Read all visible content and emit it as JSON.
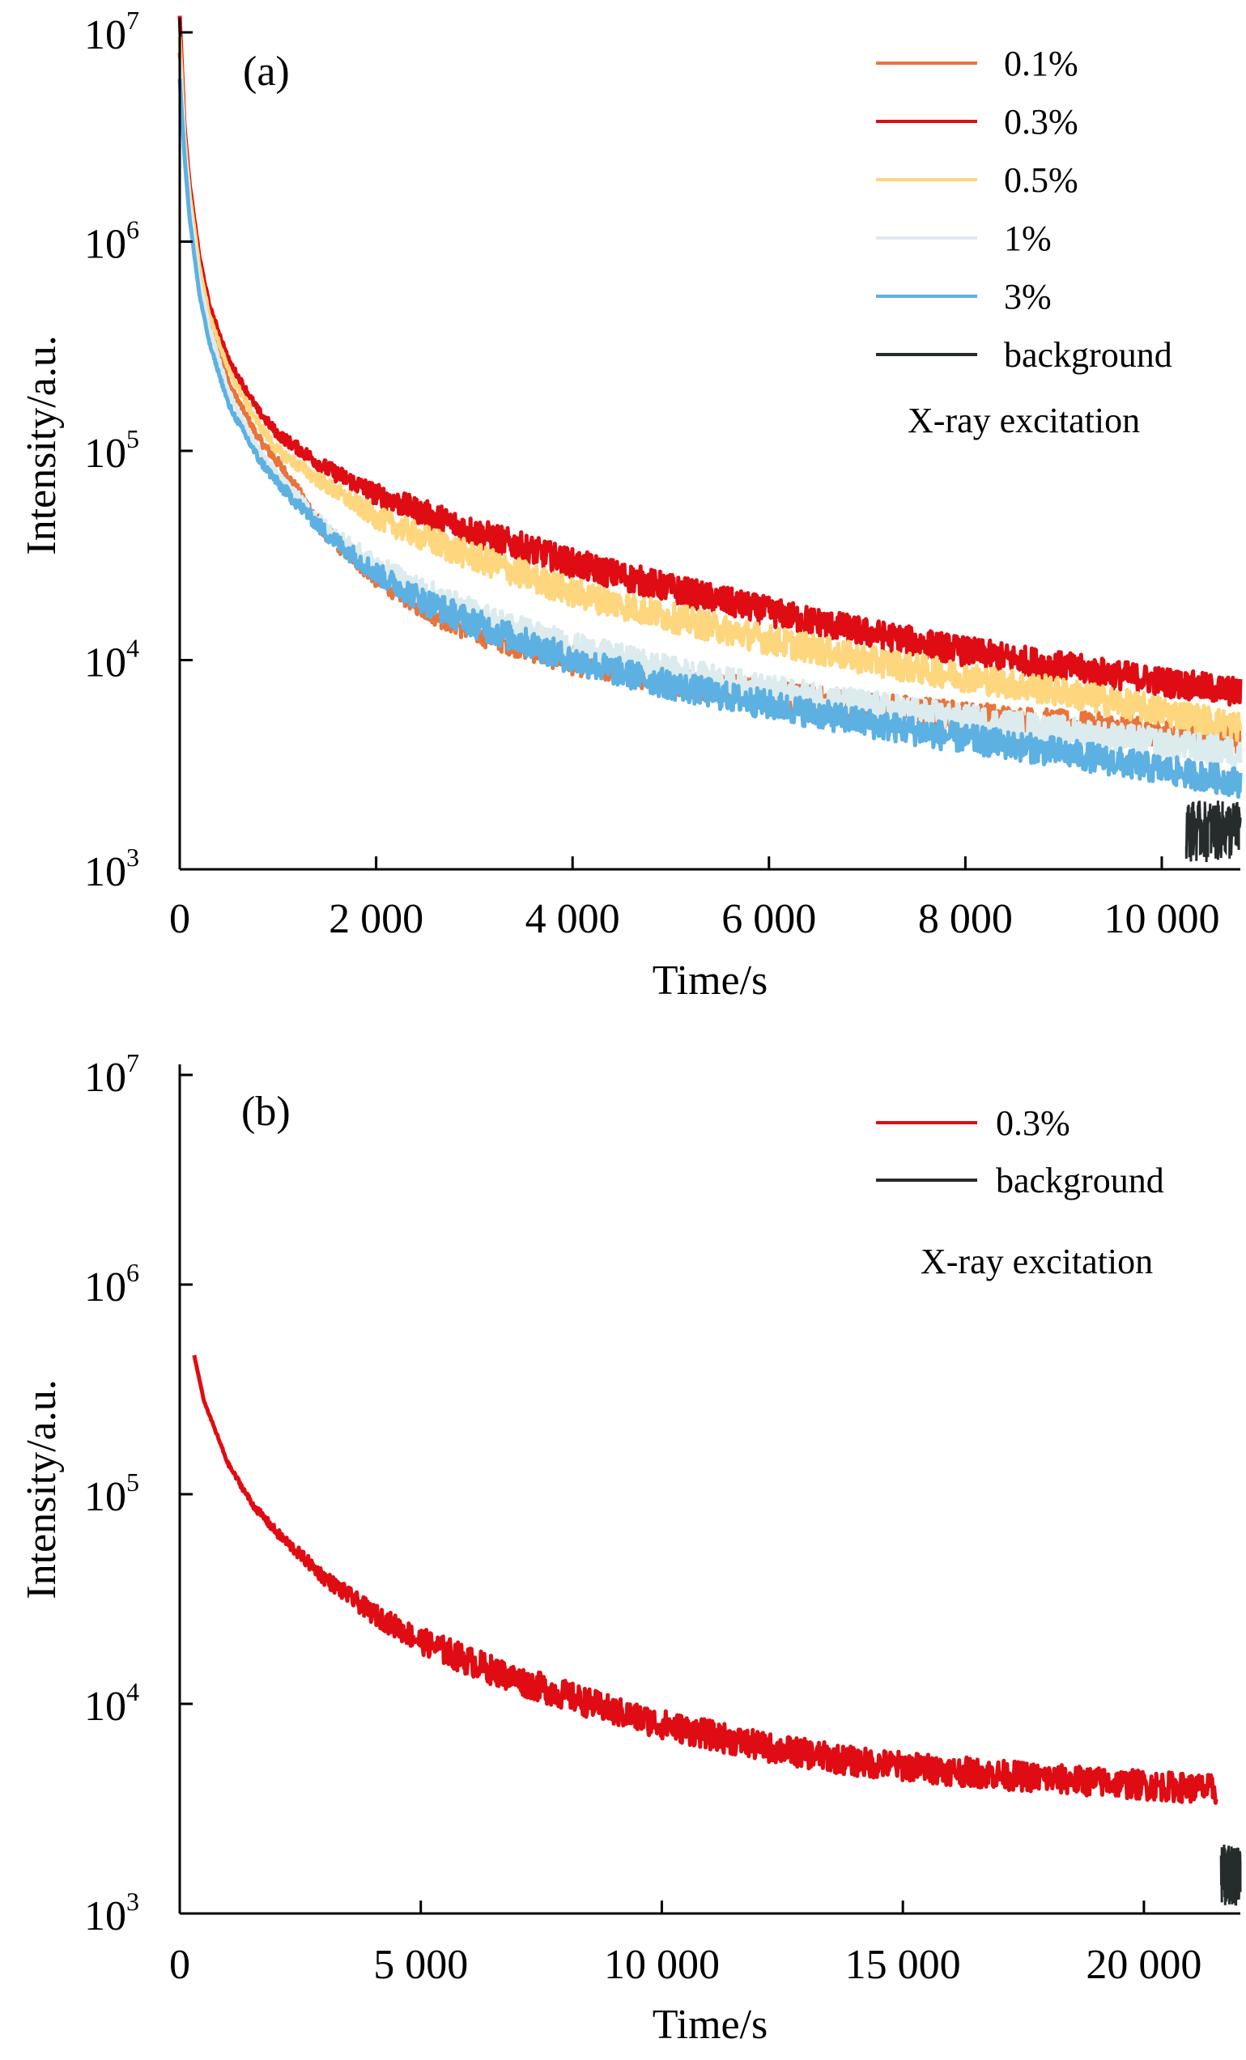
{
  "chart_data": [
    {
      "type": "line",
      "panel_label": "(a)",
      "xlabel": "Time/s",
      "ylabel": "Intensity/a.u.",
      "xlim": [
        0,
        10800
      ],
      "ylim": [
        1000,
        10000000
      ],
      "y_scale": "log",
      "x_ticks": [
        0,
        2000,
        4000,
        6000,
        8000,
        10000
      ],
      "x_tick_labels": [
        "0",
        "2 000",
        "4 000",
        "6 000",
        "8 000",
        "10 000"
      ],
      "y_ticks": [
        1000,
        10000,
        100000,
        1000000,
        10000000
      ],
      "y_tick_labels": [
        {
          "base": "10",
          "exp": "3"
        },
        {
          "base": "10",
          "exp": "4"
        },
        {
          "base": "10",
          "exp": "5"
        },
        {
          "base": "10",
          "exp": "6"
        },
        {
          "base": "10",
          "exp": "7"
        }
      ],
      "legend_position": "top-right",
      "annotation": "X-ray excitation",
      "grid": false,
      "series": [
        {
          "name": "0.1%",
          "color": "#E8743B",
          "x": [
            0,
            50,
            100,
            200,
            300,
            500,
            800,
            1000,
            1500,
            2000,
            2500,
            3000,
            4000,
            5000,
            6000,
            7000,
            8000,
            9000,
            10000,
            10800
          ],
          "y": [
            8000000,
            3000000,
            1600000,
            700000,
            420000,
            210000,
            115000,
            88000,
            40000,
            25000,
            18000,
            14000,
            10000,
            8000,
            6800,
            6000,
            5400,
            4900,
            4500,
            4200
          ]
        },
        {
          "name": "0.3%",
          "color": "#E00C13",
          "x": [
            0,
            50,
            100,
            200,
            300,
            500,
            800,
            1000,
            1500,
            2000,
            2500,
            3000,
            4000,
            5000,
            6000,
            7000,
            8000,
            9000,
            10000,
            10800
          ],
          "y": [
            12000000,
            3500000,
            1900000,
            850000,
            500000,
            270000,
            155000,
            120000,
            82000,
            62000,
            50000,
            41000,
            29000,
            22000,
            17000,
            13500,
            11000,
            9300,
            7900,
            7000
          ]
        },
        {
          "name": "0.5%",
          "color": "#FDD67E",
          "x": [
            0,
            50,
            100,
            200,
            300,
            500,
            800,
            1000,
            1500,
            2000,
            2500,
            3000,
            4000,
            5000,
            6000,
            7000,
            8000,
            9000,
            10000,
            10800
          ],
          "y": [
            9500000,
            3100000,
            1700000,
            760000,
            450000,
            240000,
            135000,
            100000,
            68000,
            48000,
            38000,
            31000,
            21000,
            16000,
            12500,
            10000,
            8300,
            7000,
            5700,
            4800
          ]
        },
        {
          "name": "1%",
          "color": "#DCEBEE",
          "x": [
            0,
            50,
            100,
            200,
            300,
            500,
            800,
            1000,
            1500,
            2000,
            2500,
            3000,
            4000,
            5000,
            6000,
            7000,
            8000,
            9000,
            10000,
            10800
          ],
          "y": [
            7500000,
            2800000,
            1500000,
            650000,
            390000,
            190000,
            100000,
            75000,
            42000,
            28000,
            21000,
            16500,
            11500,
            8900,
            7200,
            6100,
            5200,
            4600,
            4000,
            3600
          ]
        },
        {
          "name": "3%",
          "color": "#5DB0E2",
          "x": [
            0,
            50,
            100,
            200,
            300,
            500,
            800,
            1000,
            1500,
            2000,
            2500,
            3000,
            4000,
            5000,
            6000,
            7000,
            8000,
            9000,
            10000,
            10800
          ],
          "y": [
            6000000,
            2500000,
            1300000,
            560000,
            330000,
            165000,
            92000,
            70000,
            40000,
            26000,
            19000,
            15000,
            10000,
            7600,
            6100,
            5000,
            4200,
            3600,
            3000,
            2600
          ]
        },
        {
          "name": "background",
          "color": "#262B2C",
          "x": [
            10250,
            10400,
            10550,
            10700,
            10800
          ],
          "y": [
            1500,
            1500,
            1500,
            1500,
            1500
          ]
        }
      ]
    },
    {
      "type": "line",
      "panel_label": "(b)",
      "xlabel": "Time/s",
      "ylabel": "Intensity/a.u.",
      "xlim": [
        0,
        22000
      ],
      "ylim": [
        1000,
        10000000
      ],
      "y_scale": "log",
      "x_ticks": [
        0,
        5000,
        10000,
        15000,
        20000
      ],
      "x_tick_labels": [
        "0",
        "5 000",
        "10 000",
        "15 000",
        "20 000"
      ],
      "y_ticks": [
        1000,
        10000,
        100000,
        1000000,
        10000000
      ],
      "y_tick_labels": [
        {
          "base": "10",
          "exp": "3"
        },
        {
          "base": "10",
          "exp": "4"
        },
        {
          "base": "10",
          "exp": "5"
        },
        {
          "base": "10",
          "exp": "6"
        },
        {
          "base": "10",
          "exp": "7"
        }
      ],
      "legend_position": "top-right",
      "annotation": "X-ray excitation",
      "grid": false,
      "series": [
        {
          "name": "0.3%",
          "color": "#E00C13",
          "x": [
            300,
            500,
            1000,
            1500,
            2000,
            3000,
            4000,
            5000,
            6000,
            7000,
            8000,
            9000,
            10000,
            12000,
            14000,
            16000,
            18000,
            20000,
            21500
          ],
          "y": [
            460000,
            280000,
            140000,
            90000,
            66000,
            40000,
            27000,
            20000,
            16000,
            13000,
            11000,
            9200,
            8000,
            6300,
            5300,
            4800,
            4400,
            4100,
            3900
          ]
        },
        {
          "name": "background",
          "color": "#262B2C",
          "x": [
            21600,
            21800,
            22000
          ],
          "y": [
            1500,
            1500,
            1500
          ]
        }
      ]
    }
  ]
}
